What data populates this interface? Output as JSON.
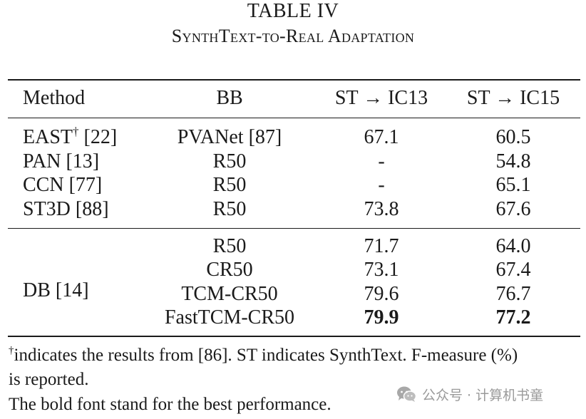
{
  "caption": {
    "title": "TABLE IV",
    "subtitle": "SynthText-to-Real Adaptation"
  },
  "table": {
    "headers": {
      "method": "Method",
      "bb": "BB",
      "ic13": "ST → IC13",
      "ic15": "ST → IC15"
    },
    "group1": [
      {
        "method": "EAST",
        "method_sup": "†",
        "method_ref": " [22]",
        "bb": "PVANet [87]",
        "ic13": "67.1",
        "ic15": "60.5"
      },
      {
        "method": "PAN [13]",
        "bb": "R50",
        "ic13": "-",
        "ic15": "54.8"
      },
      {
        "method": "CCN [77]",
        "bb": "R50",
        "ic13": "-",
        "ic15": "65.1"
      },
      {
        "method": "ST3D [88]",
        "bb": "R50",
        "ic13": "73.8",
        "ic15": "67.6"
      }
    ],
    "group2": {
      "method": "DB [14]",
      "rows": [
        {
          "bb": "R50",
          "ic13": "71.7",
          "ic15": "64.0"
        },
        {
          "bb": "CR50",
          "ic13": "73.1",
          "ic15": "67.4"
        },
        {
          "bb": "TCM-CR50",
          "ic13": "79.6",
          "ic15": "76.7"
        },
        {
          "bb": "FastTCM-CR50",
          "ic13": "79.9",
          "ic15": "77.2",
          "bold": true
        }
      ]
    }
  },
  "footnotes": {
    "line1_sup": "†",
    "line1": "indicates the results from [86]. ST indicates SynthText. F-measure (%)",
    "line2": "is reported.",
    "line3": "The bold font stand for the best performance."
  },
  "watermark": {
    "icon": "wechat-icon",
    "text": "公众号 · 计算机书童"
  }
}
